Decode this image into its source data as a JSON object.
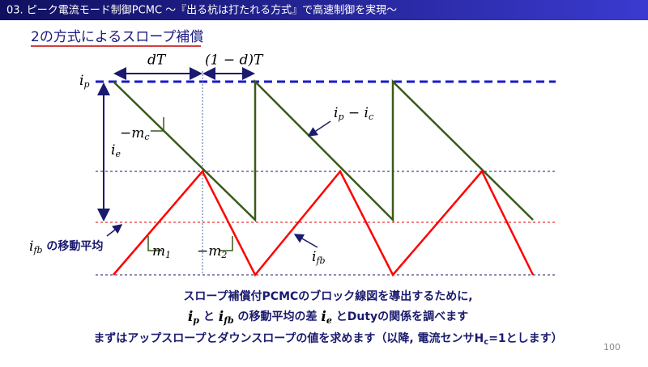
{
  "header": {
    "title": "03. ピーク電流モード制御PCMC ～『出る杭は打たれる方式』で高速制御を実現～"
  },
  "subtitle": "2の方式によるスロープ補償",
  "diagram": {
    "dT": "dT",
    "one_minus_dT": "(1 − d)T",
    "ip": [
      "i",
      "p"
    ],
    "ie": [
      "i",
      "e"
    ],
    "mc": [
      "−m",
      "c"
    ],
    "ip_ic": [
      "i",
      "p",
      " − i",
      "c"
    ],
    "ifb_avg": [
      "i",
      "fb",
      " の移動平均"
    ],
    "m1": [
      "m",
      "1"
    ],
    "m2": [
      "−m",
      "2"
    ],
    "ifb": [
      "i",
      "fb"
    ]
  },
  "body": {
    "line1": "スロープ補償付PCMCのブロック線図を導出するために,",
    "line2": [
      "i",
      "p",
      " と ",
      "i",
      "fb",
      " の移動平均の差 ",
      "i",
      "e",
      " とDutyの関係を調べます"
    ],
    "line3": [
      "まずはアップスロープとダウンスロープの値を求めます（以降, 電流センサH",
      "c",
      "=1とします）"
    ]
  },
  "page_number": "100"
}
